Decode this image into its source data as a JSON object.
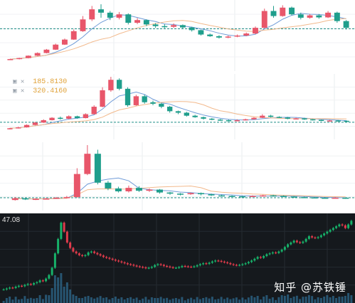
{
  "colors": {
    "up": "#e8566a",
    "down": "#1f9e8c",
    "ma1": "#6f9bd8",
    "ma2": "#f2b98c",
    "dark_bg": "#15191d",
    "dark_up": "#17b26a",
    "dark_down": "#e03b4b"
  },
  "panel2": {
    "legend": [
      {
        "icon": "checkbox-icon",
        "value": "185.8130"
      },
      {
        "icon": "checkbox-icon",
        "value": "320.4160"
      }
    ]
  },
  "panel4": {
    "price_label": "47.08"
  },
  "watermark": "知乎 @苏铁锤",
  "chart_data": [
    {
      "type": "candlestick",
      "candles": [
        [
          1.0,
          1.2,
          1.0,
          1.3
        ],
        [
          1.2,
          1.5,
          1.1,
          1.6
        ],
        [
          1.5,
          2.2,
          1.4,
          2.3
        ],
        [
          2.2,
          3.0,
          2.1,
          3.2
        ],
        [
          3.0,
          4.0,
          2.9,
          4.2
        ],
        [
          4.0,
          5.5,
          3.9,
          5.8
        ],
        [
          5.5,
          7.0,
          5.4,
          7.3
        ],
        [
          7.0,
          9.5,
          6.9,
          10.0
        ],
        [
          9.5,
          13.0,
          9.3,
          14.0
        ],
        [
          13.0,
          16.0,
          12.5,
          17.0
        ],
        [
          16.0,
          15.0,
          13.5,
          17.5
        ],
        [
          15.0,
          13.5,
          12.8,
          15.5
        ],
        [
          13.5,
          14.5,
          13.0,
          15.2
        ],
        [
          14.5,
          12.0,
          11.5,
          14.8
        ],
        [
          12.0,
          12.8,
          11.6,
          13.4
        ],
        [
          12.8,
          11.5,
          11.0,
          13.0
        ],
        [
          11.5,
          11.0,
          10.5,
          11.9
        ],
        [
          11.0,
          10.8,
          10.4,
          11.6
        ],
        [
          10.8,
          11.3,
          10.5,
          11.8
        ],
        [
          11.3,
          10.6,
          10.2,
          11.5
        ],
        [
          10.6,
          9.8,
          9.4,
          10.8
        ],
        [
          9.8,
          8.5,
          8.2,
          10.0
        ],
        [
          8.5,
          8.0,
          7.8,
          8.8
        ],
        [
          8.0,
          7.6,
          7.3,
          8.3
        ],
        [
          7.6,
          7.9,
          7.4,
          8.2
        ],
        [
          7.9,
          8.2,
          7.7,
          8.5
        ],
        [
          8.2,
          8.8,
          8.0,
          9.1
        ],
        [
          8.8,
          10.5,
          8.6,
          10.9
        ],
        [
          10.5,
          15.5,
          10.3,
          16.2
        ],
        [
          15.5,
          14.0,
          13.5,
          17.0
        ],
        [
          14.0,
          16.5,
          13.8,
          17.2
        ],
        [
          16.5,
          14.5,
          14.2,
          16.8
        ],
        [
          14.5,
          13.5,
          13.0,
          15.0
        ],
        [
          13.5,
          14.2,
          13.2,
          14.6
        ],
        [
          14.2,
          13.6,
          13.2,
          14.6
        ],
        [
          13.6,
          15.0,
          13.4,
          15.5
        ],
        [
          15.0,
          12.5,
          12.0,
          15.3
        ],
        [
          12.5,
          10.5,
          10.0,
          12.8
        ]
      ]
    },
    {
      "type": "candlestick",
      "candles": [
        [
          1.0,
          1.3,
          0.9,
          1.4
        ],
        [
          1.3,
          1.6,
          1.2,
          1.8
        ],
        [
          1.6,
          2.4,
          1.5,
          2.6
        ],
        [
          2.4,
          3.2,
          2.3,
          3.4
        ],
        [
          3.2,
          4.0,
          3.1,
          4.3
        ],
        [
          4.0,
          4.8,
          3.9,
          5.0
        ],
        [
          4.8,
          4.5,
          4.2,
          5.2
        ],
        [
          4.5,
          5.3,
          4.3,
          5.6
        ],
        [
          5.3,
          4.7,
          4.5,
          5.5
        ],
        [
          4.7,
          6.0,
          4.6,
          6.3
        ],
        [
          6.0,
          8.5,
          5.9,
          9.0
        ],
        [
          8.5,
          14.0,
          8.3,
          15.0
        ],
        [
          14.0,
          17.5,
          13.5,
          18.5
        ],
        [
          17.5,
          14.5,
          14.0,
          18.0
        ],
        [
          14.5,
          9.0,
          8.5,
          15.0
        ],
        [
          9.0,
          12.0,
          8.8,
          12.5
        ],
        [
          12.0,
          10.0,
          9.5,
          12.5
        ],
        [
          10.0,
          9.5,
          9.0,
          10.5
        ],
        [
          9.5,
          8.5,
          8.0,
          9.8
        ],
        [
          8.5,
          7.0,
          6.5,
          8.8
        ],
        [
          7.0,
          6.5,
          6.0,
          7.2
        ],
        [
          6.5,
          5.5,
          5.2,
          6.8
        ],
        [
          5.5,
          5.0,
          4.8,
          5.8
        ],
        [
          5.0,
          4.5,
          4.2,
          5.2
        ],
        [
          4.5,
          4.2,
          4.0,
          4.7
        ],
        [
          4.2,
          4.0,
          3.8,
          4.4
        ],
        [
          4.0,
          3.8,
          3.6,
          4.2
        ],
        [
          3.8,
          4.0,
          3.7,
          4.3
        ],
        [
          4.0,
          4.3,
          3.9,
          4.5
        ],
        [
          4.3,
          4.8,
          4.2,
          5.0
        ],
        [
          4.8,
          5.5,
          4.7,
          6.0
        ],
        [
          5.5,
          5.1,
          4.9,
          5.8
        ],
        [
          5.1,
          4.9,
          4.7,
          5.3
        ],
        [
          4.9,
          4.5,
          4.3,
          5.1
        ],
        [
          4.5,
          4.6,
          4.3,
          4.8
        ],
        [
          4.6,
          4.3,
          4.1,
          4.8
        ],
        [
          4.3,
          4.1,
          3.9,
          4.4
        ],
        [
          4.1,
          3.9,
          3.7,
          4.2
        ],
        [
          3.9,
          3.9,
          3.7,
          4.1
        ],
        [
          3.9,
          3.8,
          3.6,
          4.1
        ],
        [
          3.8,
          3.5,
          3.3,
          3.9
        ]
      ]
    },
    {
      "type": "candlestick",
      "candles": [
        [
          1.5,
          1.8,
          1.4,
          2.0
        ],
        [
          1.8,
          1.6,
          1.5,
          1.9
        ],
        [
          1.6,
          1.7,
          1.5,
          1.8
        ],
        [
          1.7,
          1.75,
          1.6,
          1.9
        ],
        [
          1.75,
          1.9,
          1.7,
          2.0
        ],
        [
          1.9,
          2.0,
          1.8,
          2.2
        ],
        [
          2.0,
          6.0,
          1.9,
          7.0
        ],
        [
          6.0,
          9.5,
          5.8,
          11.0
        ],
        [
          9.5,
          4.5,
          4.2,
          10.2
        ],
        [
          4.5,
          3.5,
          3.2,
          4.8
        ],
        [
          3.5,
          3.0,
          2.8,
          3.8
        ],
        [
          3.0,
          3.6,
          2.8,
          4.0
        ],
        [
          3.6,
          3.1,
          2.9,
          3.9
        ],
        [
          3.1,
          3.3,
          2.9,
          3.5
        ],
        [
          3.3,
          2.8,
          2.6,
          3.4
        ],
        [
          2.8,
          2.6,
          2.4,
          2.9
        ],
        [
          2.6,
          2.5,
          2.3,
          2.7
        ],
        [
          2.5,
          2.7,
          2.4,
          2.8
        ],
        [
          2.7,
          2.5,
          2.3,
          2.8
        ],
        [
          2.5,
          2.3,
          2.2,
          2.6
        ],
        [
          2.3,
          2.2,
          2.1,
          2.4
        ],
        [
          2.2,
          2.15,
          2.0,
          2.3
        ],
        [
          2.15,
          2.1,
          2.0,
          2.2
        ],
        [
          2.1,
          2.2,
          2.0,
          2.3
        ],
        [
          2.2,
          2.3,
          2.1,
          2.4
        ],
        [
          2.3,
          2.2,
          2.1,
          2.4
        ],
        [
          2.2,
          2.1,
          2.0,
          2.3
        ],
        [
          2.1,
          2.0,
          1.9,
          2.2
        ],
        [
          2.0,
          1.95,
          1.85,
          2.1
        ],
        [
          1.95,
          1.9,
          1.8,
          2.0
        ],
        [
          1.9,
          1.85,
          1.8,
          2.0
        ],
        [
          1.85,
          1.9,
          1.8,
          2.0
        ],
        [
          1.9,
          1.8,
          1.7,
          1.95
        ]
      ]
    },
    {
      "type": "candlestick",
      "dark_theme": true,
      "close_series": [
        10,
        10.5,
        11,
        10.8,
        11.5,
        12,
        11.8,
        12.5,
        13,
        12.7,
        13.5,
        14,
        15,
        14.6,
        16,
        18,
        22,
        30,
        38,
        47,
        42,
        36,
        33,
        31,
        30,
        29,
        28.5,
        29,
        30.5,
        31,
        30.2,
        29.5,
        28.8,
        28,
        27.5,
        27,
        26.5,
        26,
        25.5,
        25,
        24.5,
        24,
        23.7,
        23.2,
        22.8,
        22.5,
        22.2,
        21.8,
        22,
        22.5,
        23.5,
        24,
        23.6,
        23,
        22.7,
        22.3,
        22,
        22,
        22.4,
        23,
        22.8,
        22.6,
        22.5,
        22.8,
        23.4,
        24,
        24.5,
        24.2,
        24.8,
        25.5,
        26,
        25.8,
        25.4,
        25,
        24.6,
        24,
        23.6,
        23.4,
        23.6,
        24,
        24.5,
        25.2,
        26,
        27,
        28,
        27.5,
        28.5,
        29.5,
        30,
        30.5,
        30.2,
        31,
        32,
        33.5,
        35,
        36,
        37,
        36.2,
        35.8,
        36.5,
        38,
        39.5,
        38.8,
        38.5,
        39,
        40,
        41,
        42,
        43,
        44,
        45,
        46,
        45.5,
        44,
        46,
        48
      ]
    }
  ]
}
